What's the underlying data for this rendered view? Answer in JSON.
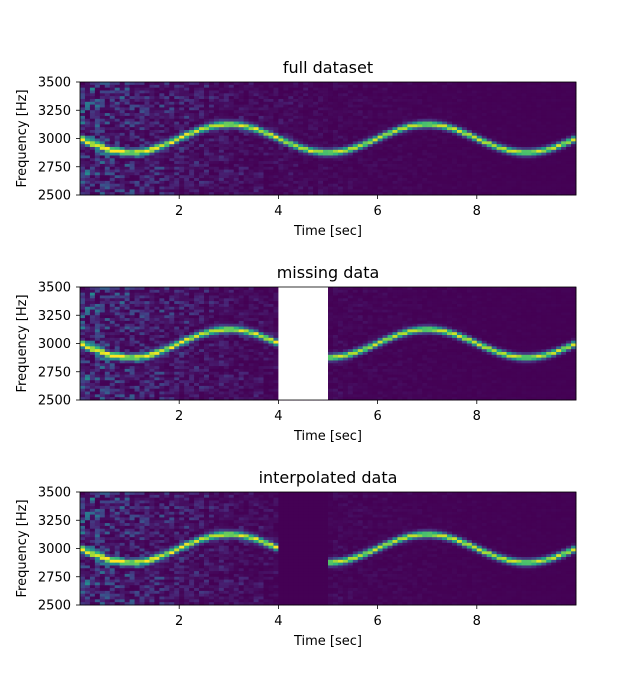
{
  "chart_data": [
    {
      "type": "heatmap",
      "title": "full dataset",
      "xlabel": "Time [sec]",
      "ylabel": "Frequency [Hz]",
      "xlim": [
        0,
        10
      ],
      "ylim": [
        2500,
        3500
      ],
      "xticks": [
        2,
        4,
        6,
        8
      ],
      "yticks": [
        2500,
        2750,
        3000,
        3250,
        3500
      ],
      "signal": {
        "center_hz": 3000,
        "amplitude_hz": 125,
        "period_sec": 4,
        "zero_phase_time_sec": 2
      },
      "colormap": "viridis",
      "gap": null,
      "noise_decay_sec": 4
    },
    {
      "type": "heatmap",
      "title": "missing data",
      "xlabel": "Time [sec]",
      "ylabel": "Frequency [Hz]",
      "xlim": [
        0,
        10
      ],
      "ylim": [
        2500,
        3500
      ],
      "xticks": [
        2,
        4,
        6,
        8
      ],
      "yticks": [
        2500,
        2750,
        3000,
        3250,
        3500
      ],
      "signal": {
        "center_hz": 3000,
        "amplitude_hz": 125,
        "period_sec": 4,
        "zero_phase_time_sec": 2
      },
      "colormap": "viridis",
      "gap": {
        "start_sec": 4,
        "end_sec": 5,
        "fill": "white"
      },
      "noise_decay_sec": 4
    },
    {
      "type": "heatmap",
      "title": "interpolated data",
      "xlabel": "Time [sec]",
      "ylabel": "Frequency [Hz]",
      "xlim": [
        0,
        10
      ],
      "ylim": [
        2500,
        3500
      ],
      "xticks": [
        2,
        4,
        6,
        8
      ],
      "yticks": [
        2500,
        2750,
        3000,
        3250,
        3500
      ],
      "signal": {
        "center_hz": 3000,
        "amplitude_hz": 125,
        "period_sec": 4,
        "zero_phase_time_sec": 2
      },
      "colormap": "viridis",
      "gap": {
        "start_sec": 4,
        "end_sec": 5,
        "fill": "background"
      },
      "noise_decay_sec": 4
    }
  ],
  "colors": {
    "background": "#440154",
    "mid": "#3b528b",
    "line": "#21918c",
    "peak": "#5ec962",
    "highlight": "#fde725"
  }
}
